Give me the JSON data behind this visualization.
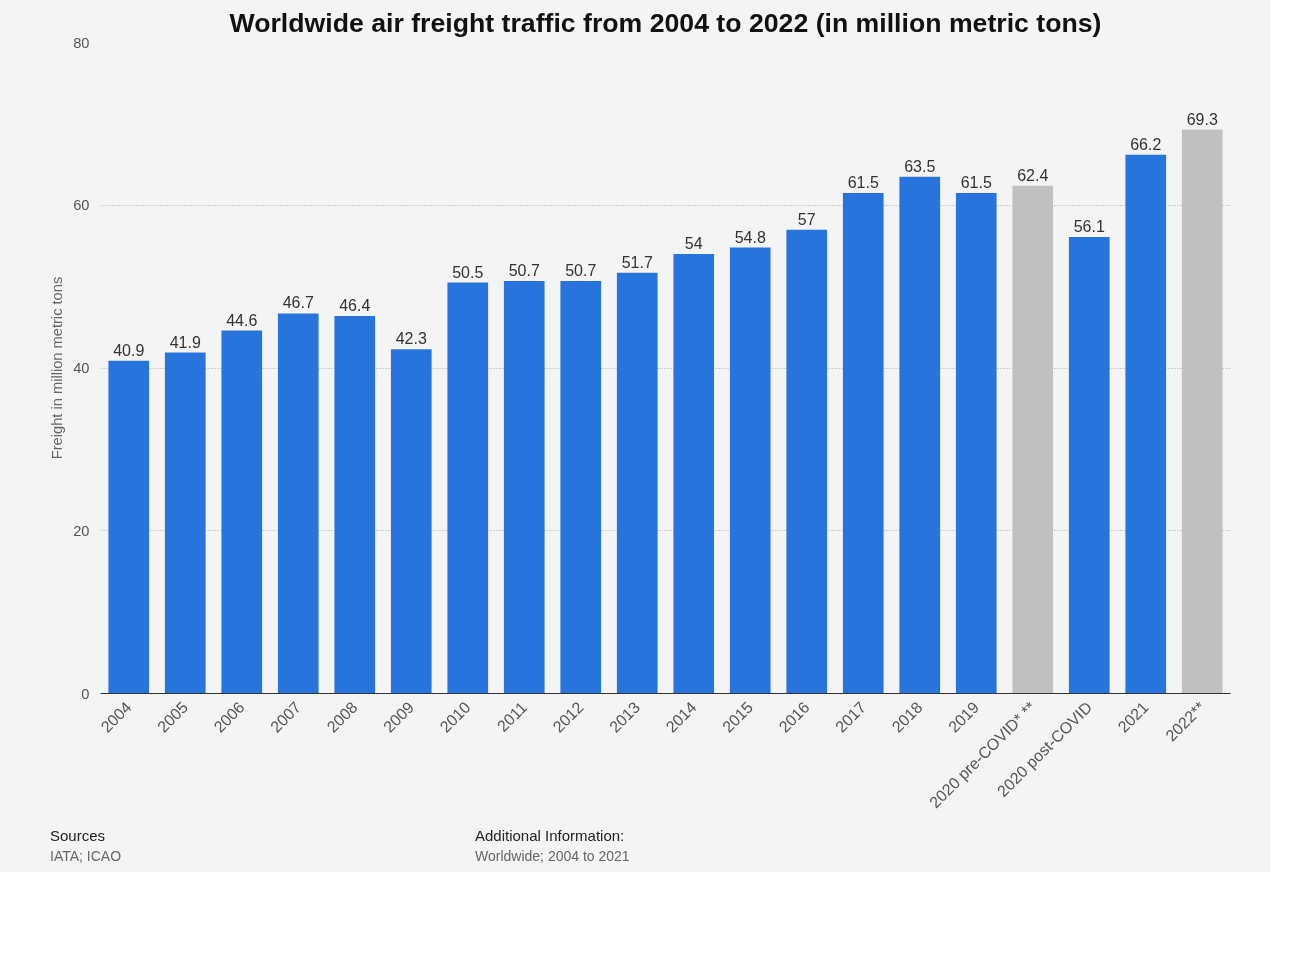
{
  "chart_data": {
    "type": "bar",
    "title": "Worldwide air freight traffic from 2004 to 2022 (in million metric tons)",
    "ylabel": "Freight in million metric tons",
    "categories": [
      "2004",
      "2005",
      "2006",
      "2007",
      "2008",
      "2009",
      "2010",
      "2011",
      "2012",
      "2013",
      "2014",
      "2015",
      "2016",
      "2017",
      "2018",
      "2019",
      "2020 pre-COVID* **",
      "2020 post-COVID",
      "2021",
      "2022**"
    ],
    "values": [
      40.9,
      41.9,
      44.6,
      46.7,
      46.4,
      42.3,
      50.5,
      50.7,
      50.7,
      51.7,
      54,
      54.8,
      57,
      61.5,
      63.5,
      61.5,
      62.4,
      56.1,
      66.2,
      69.3
    ],
    "colors": [
      "#2874dd",
      "#2874dd",
      "#2874dd",
      "#2874dd",
      "#2874dd",
      "#2874dd",
      "#2874dd",
      "#2874dd",
      "#2874dd",
      "#2874dd",
      "#2874dd",
      "#2874dd",
      "#2874dd",
      "#2874dd",
      "#2874dd",
      "#2874dd",
      "#c0c0c0",
      "#2874dd",
      "#2874dd",
      "#c0c0c0"
    ],
    "ylim": [
      0,
      80
    ],
    "yticks": [
      0,
      20,
      40,
      60,
      80
    ],
    "grid": "y",
    "data_labels": true,
    "annotations": [
      "Sources",
      "IATA; ICAO",
      "Additional Information:",
      "Worldwide; 2004 to 2021"
    ]
  }
}
